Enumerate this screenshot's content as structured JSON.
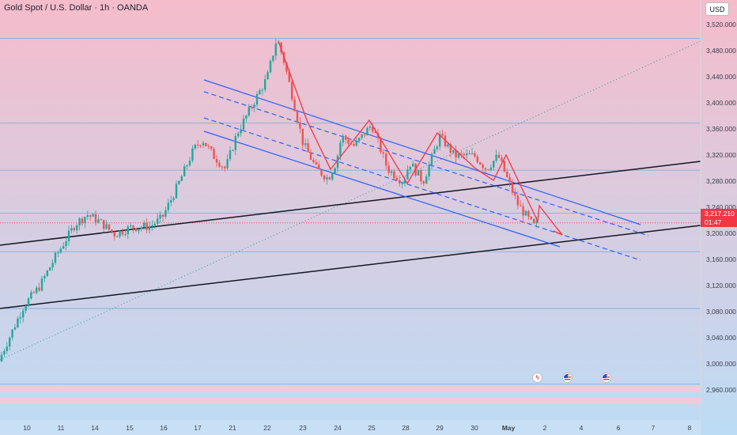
{
  "title": "Gold Spot / U.S. Dollar · 1h · OANDA",
  "currency_label": "USD",
  "price_badge": {
    "price": "3,217.210",
    "countdown": "01:47"
  },
  "events": [
    "lightning-icon",
    "us-flag-icon",
    "us-flag-icon"
  ],
  "colors": {
    "up": "#26a69a",
    "down": "#ef5350",
    "channel": "#2962ff",
    "trend": "#131722",
    "arrow": "#f23645",
    "bg_top": "#f5bccb",
    "bg_bottom": "#bcdcf5"
  },
  "chart_data": {
    "type": "candlestick",
    "symbol": "XAUUSD",
    "timeframe": "1h",
    "ylim": [
      2935,
      3560
    ],
    "y_ticks": [
      "3,520.000",
      "3,480.000",
      "3,440.000",
      "3,400.000",
      "3,360.000",
      "3,320.000",
      "3,280.000",
      "3,240.000",
      "3,200.000",
      "3,160.000",
      "3,120.000",
      "3,080.000",
      "3,040.000",
      "3,000.000",
      "2,960.000"
    ],
    "x_ticks": [
      "10",
      "11",
      "14",
      "15",
      "16",
      "17",
      "21",
      "22",
      "23",
      "24",
      "25",
      "28",
      "29",
      "30",
      "May",
      "2",
      "4",
      "6",
      "7",
      "8"
    ],
    "key_points": [
      {
        "t": "10",
        "price": 3010
      },
      {
        "t": "11",
        "price": 3180
      },
      {
        "t": "14",
        "price": 3230
      },
      {
        "t": "15",
        "price": 3200
      },
      {
        "t": "16",
        "price": 3225
      },
      {
        "t": "17",
        "price": 3345
      },
      {
        "t": "17.5",
        "price": 3300
      },
      {
        "t": "21",
        "price": 3400
      },
      {
        "t": "22 (peak)",
        "price": 3500
      },
      {
        "t": "23",
        "price": 3300
      },
      {
        "t": "24",
        "price": 3285
      },
      {
        "t": "24.5",
        "price": 3350
      },
      {
        "t": "25",
        "price": 3368
      },
      {
        "t": "28",
        "price": 3268
      },
      {
        "t": "29",
        "price": 3350
      },
      {
        "t": "30",
        "price": 3320
      },
      {
        "t": "May",
        "price": 3250
      },
      {
        "t": "last",
        "price": 3217.21
      }
    ],
    "horizontal_levels": [
      3500,
      3370,
      3298,
      3232,
      3173,
      3086,
      2970
    ],
    "annotations": [
      "descending channel (blue)",
      "ascending trend lines (black)",
      "red zigzag path with projected arrow",
      "dotted trend line"
    ]
  }
}
